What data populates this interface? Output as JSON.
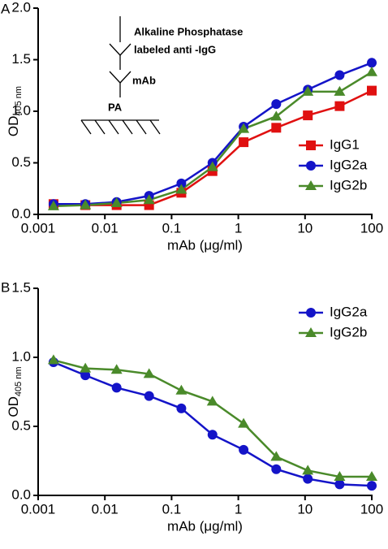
{
  "chart_data": [
    {
      "type": "line",
      "panel_label": "A",
      "ylabel": "OD",
      "ylabel_sub": "405 nm",
      "xlabel": "mAb (μg/ml)",
      "log_x": true,
      "legend": "lower right",
      "annotations": [
        "Alkaline Phosphatase",
        "labeled anti -IgG",
        "mAb",
        "PA"
      ],
      "xlim": [
        0.001,
        100
      ],
      "xticks": [
        0.001,
        0.01,
        0.1,
        1,
        10,
        100
      ],
      "ylim": [
        0,
        2
      ],
      "yticks": [
        {
          "value": 0,
          "label": "0.0"
        },
        0.5,
        {
          "value": 1,
          "label": "1.0"
        },
        1.5,
        {
          "value": 2,
          "label": "2.0"
        }
      ],
      "x": [
        0.0017,
        0.0051,
        0.015,
        0.046,
        0.14,
        0.41,
        1.2,
        3.7,
        11,
        33,
        100
      ],
      "series": [
        {
          "name": "IgG1",
          "color": "#e01010",
          "marker": "square",
          "values": [
            0.1,
            0.09,
            0.09,
            0.09,
            0.21,
            0.42,
            0.7,
            0.84,
            0.96,
            1.05,
            1.2
          ]
        },
        {
          "name": "IgG2a",
          "color": "#1414c8",
          "marker": "circle",
          "values": [
            0.1,
            0.1,
            0.12,
            0.18,
            0.3,
            0.5,
            0.85,
            1.07,
            1.21,
            1.35,
            1.47
          ]
        },
        {
          "name": "IgG2b",
          "color": "#4a8a2a",
          "marker": "triangle",
          "values": [
            0.08,
            0.09,
            0.11,
            0.14,
            0.24,
            0.46,
            0.83,
            0.95,
            1.19,
            1.19,
            1.38
          ]
        }
      ]
    },
    {
      "type": "line",
      "panel_label": "B",
      "ylabel": "OD",
      "ylabel_sub": "405 nm",
      "xlabel": "mAb (μg/ml)",
      "log_x": true,
      "legend": "upper right",
      "xlim": [
        0.001,
        100
      ],
      "xticks": [
        0.001,
        0.01,
        0.1,
        1,
        10,
        100
      ],
      "ylim": [
        0,
        1.5
      ],
      "yticks": [
        {
          "value": 0,
          "label": "0.0"
        },
        0.5,
        {
          "value": 1,
          "label": "1.0"
        },
        1.5
      ],
      "x": [
        0.0017,
        0.0051,
        0.015,
        0.046,
        0.14,
        0.41,
        1.2,
        3.7,
        11,
        33,
        100
      ],
      "series": [
        {
          "name": "IgG2a",
          "color": "#1414c8",
          "marker": "circle",
          "values": [
            0.965,
            0.87,
            0.78,
            0.72,
            0.63,
            0.44,
            0.33,
            0.19,
            0.12,
            0.08,
            0.07
          ]
        },
        {
          "name": "IgG2b",
          "color": "#4a8a2a",
          "marker": "triangle",
          "values": [
            0.98,
            0.92,
            0.91,
            0.88,
            0.76,
            0.68,
            0.52,
            0.28,
            0.18,
            0.135,
            0.135
          ]
        }
      ]
    }
  ]
}
